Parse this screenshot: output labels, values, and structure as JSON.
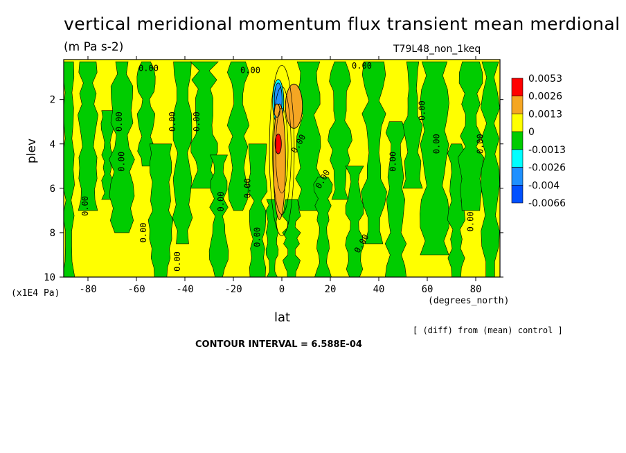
{
  "header": {
    "title": "vertical meridional momentum flux transient mean merdional",
    "units": "(m Pa s-2)",
    "run": "T79L48_non_1keq"
  },
  "footer": {
    "diff_note": "[ (diff) from (mean) control ]",
    "contour_interval": "CONTOUR INTERVAL = 6.588E-04"
  },
  "chart_data": {
    "type": "heatmap",
    "xlabel": "lat",
    "xunit": "(degrees_north)",
    "ylabel": "plev",
    "yunit": "(x1E4 Pa)",
    "xlim": [
      -90,
      90
    ],
    "ylim": [
      10,
      0.2
    ],
    "x_ticks": [
      -80,
      -60,
      -40,
      -20,
      0,
      20,
      40,
      60,
      80
    ],
    "y_ticks": [
      2,
      4,
      6,
      8,
      10
    ],
    "legend": {
      "placement": "right",
      "levels": [
        "0.0053",
        "0.0026",
        "0.0013",
        "0",
        "-0.0013",
        "-0.0026",
        "-0.004",
        "-0.0066"
      ],
      "colors": [
        "#ff0000",
        "#f5a623",
        "#ffff00",
        "#00cc00",
        "#00ffff",
        "#1e90ff",
        "#0050ff"
      ]
    },
    "contour_label": "0.00",
    "colors": {
      "positive_small": "#ffff00",
      "negative_small": "#00cc00",
      "positive_mid": "#f5a623",
      "positive_max": "#ff0000",
      "negative_mid": "#00ffff",
      "negative_large": "#1e90ff"
    },
    "green_bands": [
      {
        "lat": -88,
        "half_width": 2.0,
        "top": 0.3,
        "bottom": 10
      },
      {
        "lat": -80,
        "half_width": 3.5,
        "top": 0.3,
        "bottom": 7.0
      },
      {
        "lat": -72,
        "half_width": 2.0,
        "top": 2.5,
        "bottom": 6.5
      },
      {
        "lat": -66,
        "half_width": 4.0,
        "top": 0.3,
        "bottom": 8.0
      },
      {
        "lat": -56,
        "half_width": 3.0,
        "top": 0.3,
        "bottom": 5.0
      },
      {
        "lat": -50,
        "half_width": 4.0,
        "top": 4.0,
        "bottom": 10
      },
      {
        "lat": -41,
        "half_width": 3.5,
        "top": 0.3,
        "bottom": 8.5
      },
      {
        "lat": -32,
        "half_width": 4.5,
        "top": 0.3,
        "bottom": 6.0
      },
      {
        "lat": -26,
        "half_width": 3.0,
        "top": 4.5,
        "bottom": 10
      },
      {
        "lat": -18,
        "half_width": 3.5,
        "top": 0.3,
        "bottom": 7.0
      },
      {
        "lat": -10,
        "half_width": 3.0,
        "top": 4.0,
        "bottom": 10
      },
      {
        "lat": -4,
        "half_width": 2.0,
        "top": 6.5,
        "bottom": 10
      },
      {
        "lat": 4,
        "half_width": 3.0,
        "top": 6.5,
        "bottom": 10
      },
      {
        "lat": 11,
        "half_width": 4.0,
        "top": 0.3,
        "bottom": 7.0
      },
      {
        "lat": 17,
        "half_width": 3.0,
        "top": 5.5,
        "bottom": 10
      },
      {
        "lat": 24,
        "half_width": 4.0,
        "top": 0.3,
        "bottom": 6.5
      },
      {
        "lat": 30,
        "half_width": 3.0,
        "top": 5.0,
        "bottom": 10
      },
      {
        "lat": 38,
        "half_width": 4.0,
        "top": 0.3,
        "bottom": 8.5
      },
      {
        "lat": 47,
        "half_width": 3.5,
        "top": 3.0,
        "bottom": 10
      },
      {
        "lat": 54,
        "half_width": 3.0,
        "top": 0.3,
        "bottom": 6.0
      },
      {
        "lat": 63,
        "half_width": 4.5,
        "top": 0.3,
        "bottom": 9.0
      },
      {
        "lat": 72,
        "half_width": 3.0,
        "top": 4.0,
        "bottom": 10
      },
      {
        "lat": 78,
        "half_width": 4.0,
        "top": 0.3,
        "bottom": 7.0
      },
      {
        "lat": 86,
        "half_width": 3.0,
        "top": 0.3,
        "bottom": 10
      }
    ],
    "orange_cells": [
      {
        "lat": 5,
        "plev": 2.3,
        "rx": 3.5,
        "ry": 1.0
      },
      {
        "lat": -1,
        "plev": 4.8,
        "rx": 2.5,
        "ry": 2.6
      },
      {
        "lat": -2,
        "plev": 2.5,
        "rx": 1.2,
        "ry": 0.3
      }
    ],
    "red_cells": [
      {
        "lat": -1.5,
        "plev": 4.0,
        "rx": 1.3,
        "ry": 0.45
      }
    ],
    "blue_cells": [
      {
        "lat": -1.5,
        "plev": 2.0,
        "rx": 1.6,
        "ry": 0.75,
        "color": "#1e90ff"
      },
      {
        "lat": -1.5,
        "plev": 2.1,
        "rx": 2.3,
        "ry": 1.0,
        "color": "#00ffff"
      }
    ],
    "zero_labels": [
      {
        "lat": -55,
        "plev": 0.6,
        "rot": 0
      },
      {
        "lat": -13,
        "plev": 0.7,
        "rot": 0
      },
      {
        "lat": 33,
        "plev": 0.5,
        "rot": 0
      },
      {
        "lat": -67,
        "plev": 3.0,
        "rot": -90
      },
      {
        "lat": -45,
        "plev": 3.0,
        "rot": -90
      },
      {
        "lat": -35,
        "plev": 3.0,
        "rot": -90
      },
      {
        "lat": -66,
        "plev": 4.8,
        "rot": -90
      },
      {
        "lat": -81,
        "plev": 6.8,
        "rot": -90
      },
      {
        "lat": -14,
        "plev": 6.0,
        "rot": -90
      },
      {
        "lat": -25,
        "plev": 6.6,
        "rot": -90
      },
      {
        "lat": -57,
        "plev": 8.0,
        "rot": -90
      },
      {
        "lat": -43,
        "plev": 9.3,
        "rot": -90
      },
      {
        "lat": -10,
        "plev": 8.2,
        "rot": -90
      },
      {
        "lat": 7,
        "plev": 4.0,
        "rot": -60
      },
      {
        "lat": 17,
        "plev": 5.6,
        "rot": -60
      },
      {
        "lat": 33,
        "plev": 8.5,
        "rot": -60
      },
      {
        "lat": 46,
        "plev": 4.8,
        "rot": -90
      },
      {
        "lat": 64,
        "plev": 4.0,
        "rot": -90
      },
      {
        "lat": 58,
        "plev": 2.5,
        "rot": -90
      },
      {
        "lat": 82,
        "plev": 4.0,
        "rot": -90
      },
      {
        "lat": 78,
        "plev": 7.5,
        "rot": -90
      }
    ]
  }
}
